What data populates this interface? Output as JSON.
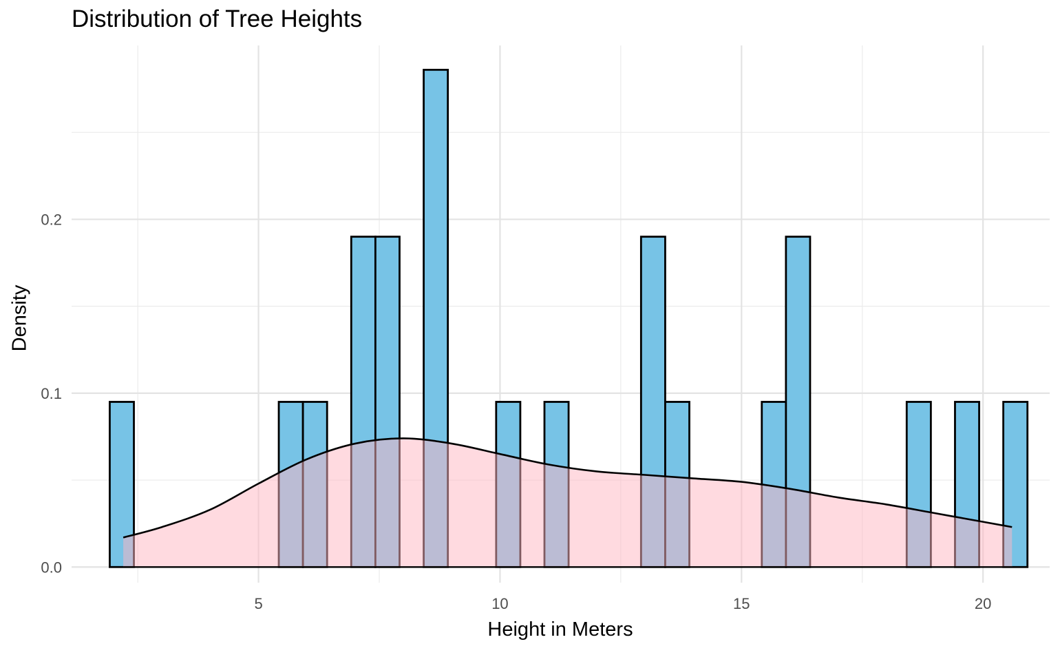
{
  "chart_data": {
    "type": "bar",
    "title": "Distribution of Tree Heights",
    "xlabel": "Height in Meters",
    "ylabel": "Density",
    "xlim": [
      1.13,
      21.38
    ],
    "ylim": [
      -0.009,
      0.3
    ],
    "x_ticks": [
      5,
      10,
      15,
      20
    ],
    "x_tick_labels": [
      "5",
      "10",
      "15",
      "20"
    ],
    "y_ticks": [
      0.0,
      0.1,
      0.2
    ],
    "y_tick_labels": [
      "0.0",
      "0.1",
      "0.2"
    ],
    "grid": true,
    "histogram": {
      "fill": "#77c3e6",
      "stroke": "#000000",
      "bins": [
        {
          "x0": 1.92,
          "x1": 2.42,
          "density": 0.095
        },
        {
          "x0": 5.42,
          "x1": 5.92,
          "density": 0.095
        },
        {
          "x0": 5.92,
          "x1": 6.42,
          "density": 0.095
        },
        {
          "x0": 6.92,
          "x1": 7.42,
          "density": 0.19
        },
        {
          "x0": 7.42,
          "x1": 7.92,
          "density": 0.19
        },
        {
          "x0": 8.42,
          "x1": 8.92,
          "density": 0.286
        },
        {
          "x0": 9.92,
          "x1": 10.42,
          "density": 0.095
        },
        {
          "x0": 10.92,
          "x1": 11.42,
          "density": 0.095
        },
        {
          "x0": 12.92,
          "x1": 13.42,
          "density": 0.19
        },
        {
          "x0": 13.42,
          "x1": 13.92,
          "density": 0.095
        },
        {
          "x0": 15.42,
          "x1": 15.92,
          "density": 0.095
        },
        {
          "x0": 15.92,
          "x1": 16.42,
          "density": 0.19
        },
        {
          "x0": 18.42,
          "x1": 18.92,
          "density": 0.095
        },
        {
          "x0": 19.42,
          "x1": 19.92,
          "density": 0.095
        },
        {
          "x0": 20.42,
          "x1": 20.92,
          "density": 0.095
        }
      ]
    },
    "density_curve": {
      "fill": "#ffb6c1",
      "fill_opacity": 0.5,
      "stroke": "#000000",
      "x": [
        2.2,
        3.0,
        4.0,
        5.0,
        6.0,
        7.0,
        8.0,
        9.0,
        10.0,
        11.0,
        12.0,
        13.0,
        14.0,
        15.0,
        16.0,
        17.0,
        18.0,
        19.0,
        20.0,
        20.6
      ],
      "y": [
        0.017,
        0.023,
        0.033,
        0.048,
        0.062,
        0.071,
        0.074,
        0.071,
        0.065,
        0.059,
        0.055,
        0.053,
        0.051,
        0.049,
        0.045,
        0.04,
        0.036,
        0.031,
        0.026,
        0.023
      ]
    }
  }
}
